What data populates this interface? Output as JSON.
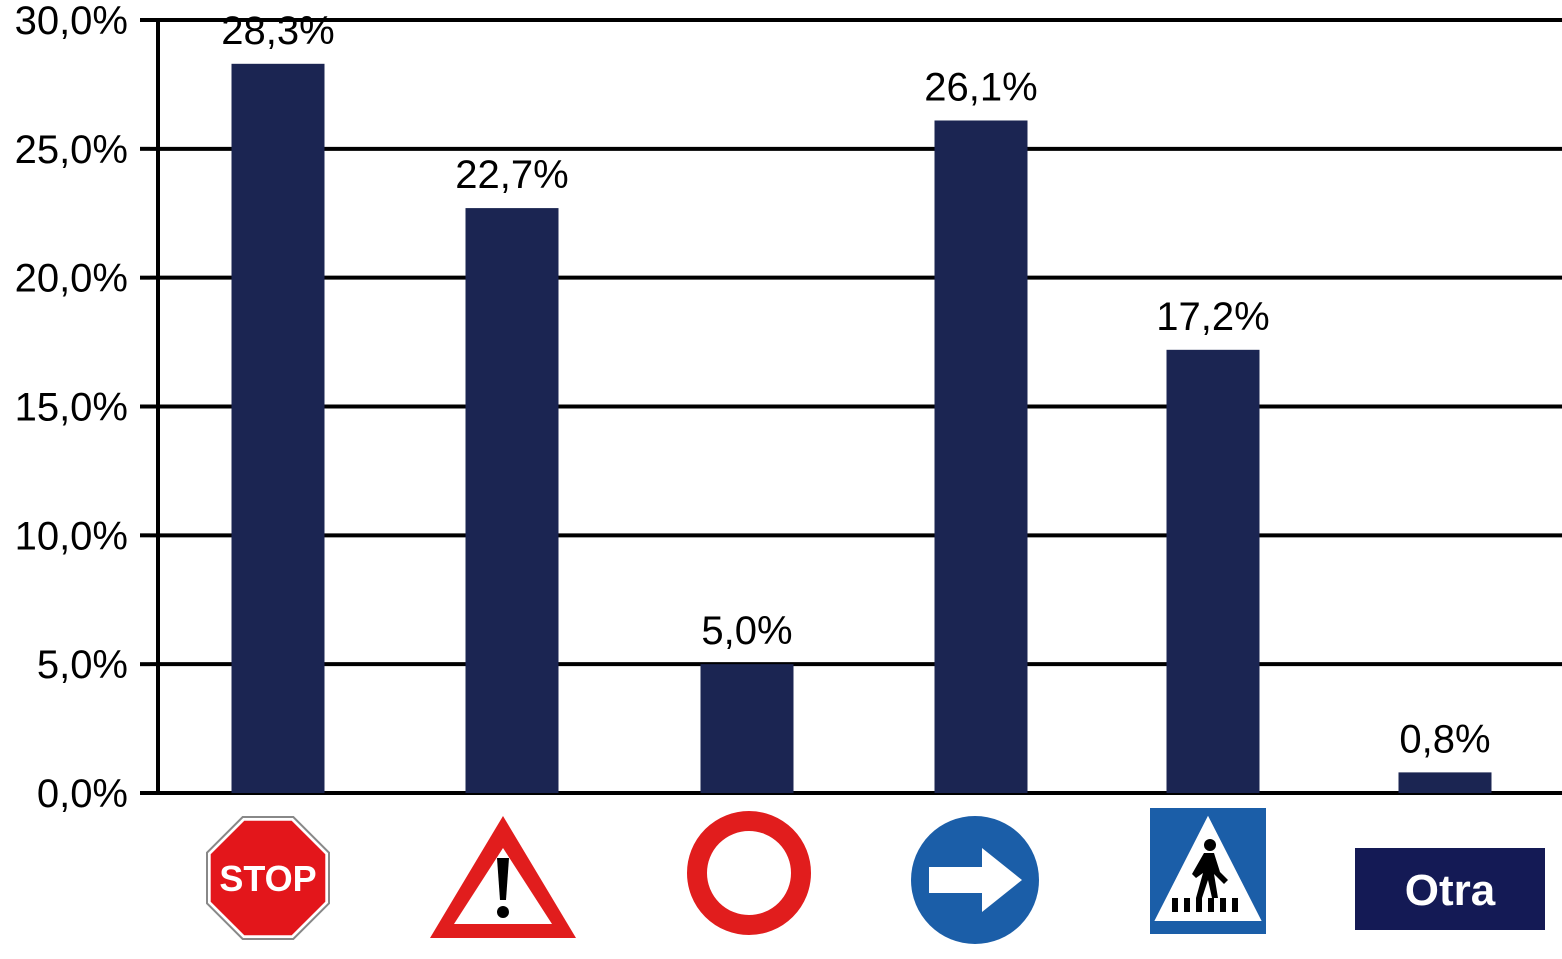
{
  "chart_data": {
    "type": "bar",
    "title": "",
    "xlabel": "",
    "ylabel": "",
    "ylim": [
      0,
      30
    ],
    "yticks": [
      "0,0%",
      "5,0%",
      "10,0%",
      "15,0%",
      "20,0%",
      "25,0%",
      "30,0%"
    ],
    "grid": true,
    "categories": [
      {
        "icon": "stop-sign-icon",
        "text": "STOP"
      },
      {
        "icon": "danger-warning-sign-icon",
        "text": ""
      },
      {
        "icon": "no-entry-circle-sign-icon",
        "text": ""
      },
      {
        "icon": "mandatory-direction-right-sign-icon",
        "text": ""
      },
      {
        "icon": "pedestrian-crossing-sign-icon",
        "text": ""
      },
      {
        "icon": "other-label",
        "text": "Otra"
      }
    ],
    "values": [
      28.3,
      22.7,
      5.0,
      26.1,
      17.2,
      0.8
    ],
    "data_labels": [
      "28,3%",
      "22,7%",
      "5,0%",
      "26,1%",
      "17,2%",
      "0,8%"
    ],
    "colors": {
      "bar": "#1b2552",
      "grid": "#000000",
      "stop_red": "#e3161b",
      "sign_red": "#e11d1d",
      "sign_blue": "#1b5ea8",
      "otra_bg": "#141a55"
    }
  }
}
